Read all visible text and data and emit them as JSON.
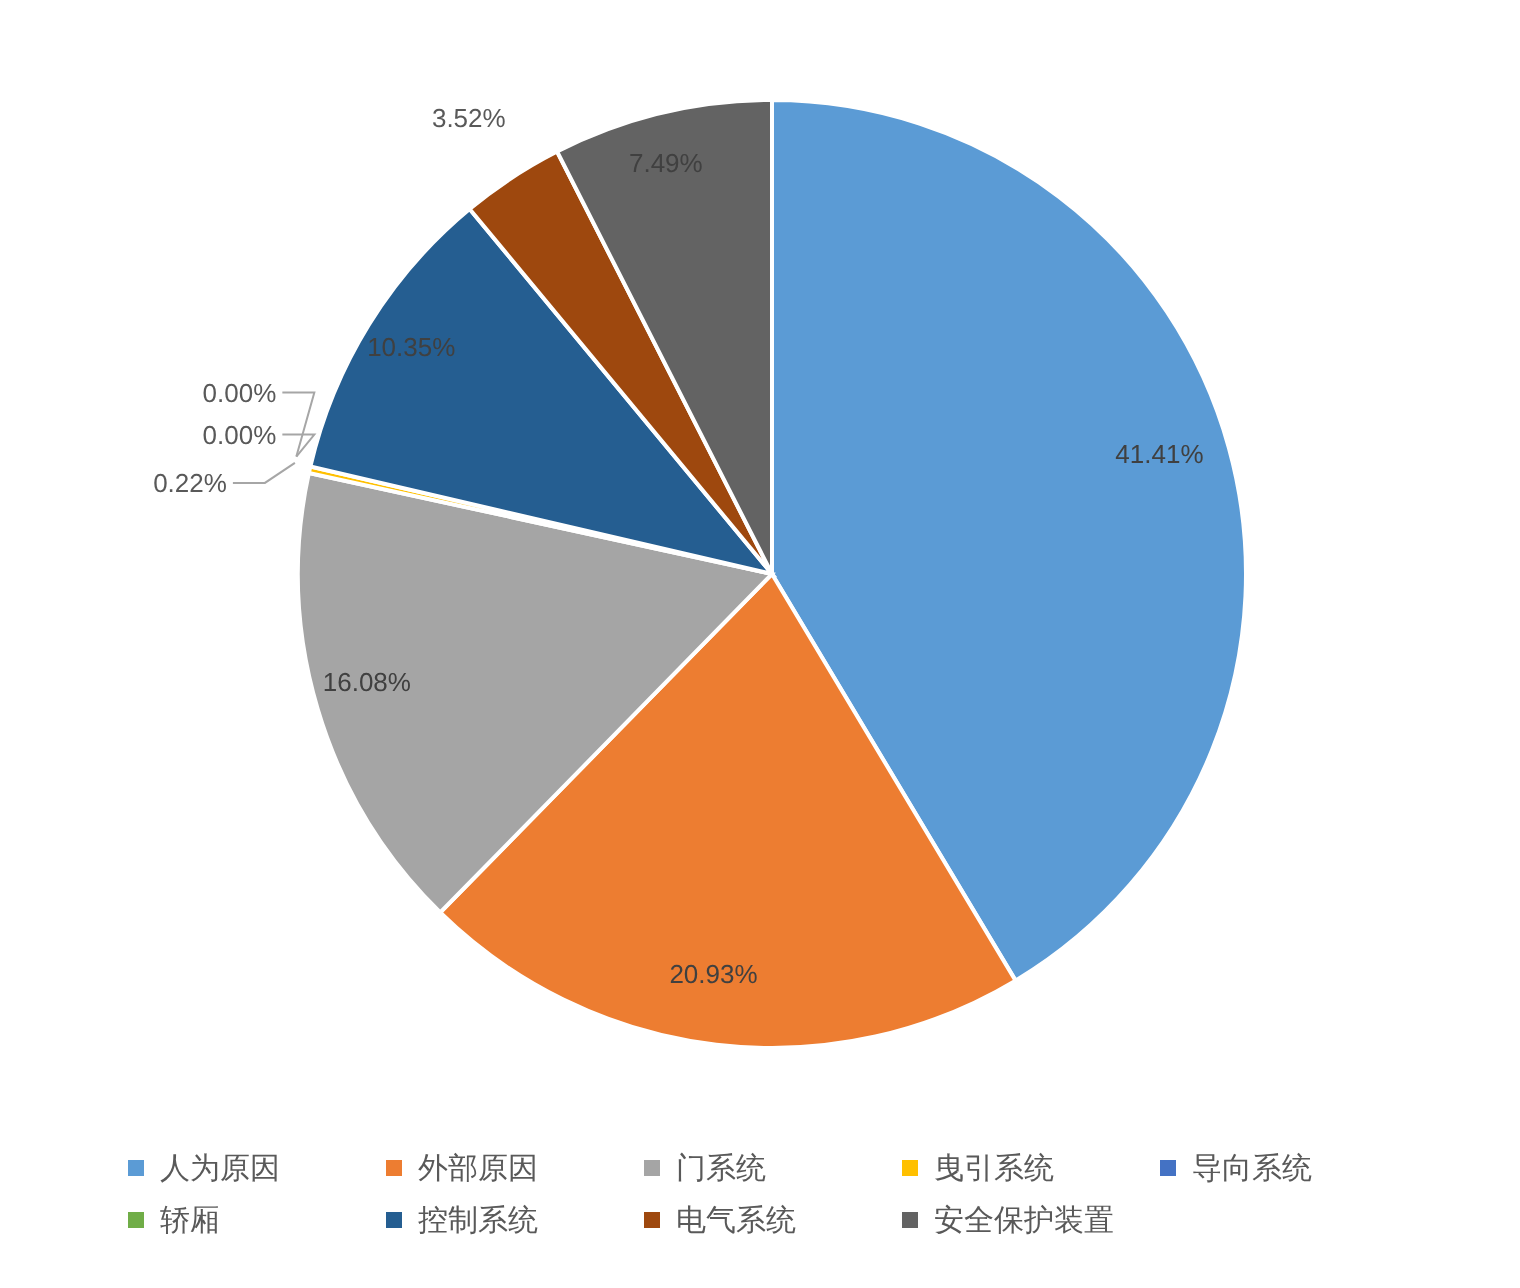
{
  "chart_data": {
    "type": "pie",
    "categories": [
      "人为原因",
      "外部原因",
      "门系统",
      "曳引系统",
      "导向系统",
      "轿厢",
      "控制系统",
      "电气系统",
      "安全保护装置"
    ],
    "values": [
      41.41,
      20.93,
      16.08,
      0.22,
      0,
      0,
      10.35,
      3.52,
      7.49
    ],
    "colors": [
      "#5b9bd5",
      "#ed7d31",
      "#a5a5a5",
      "#ffc000",
      "#4472c4",
      "#70ad47",
      "#255e91",
      "#9e480e",
      "#636363"
    ],
    "value_labels": [
      "41.41%",
      "20.93%",
      "16.08%",
      "0.22%",
      "0.00%",
      "0.00%",
      "10.35%",
      "3.52%",
      "7.49%"
    ],
    "legend": "bottom"
  }
}
